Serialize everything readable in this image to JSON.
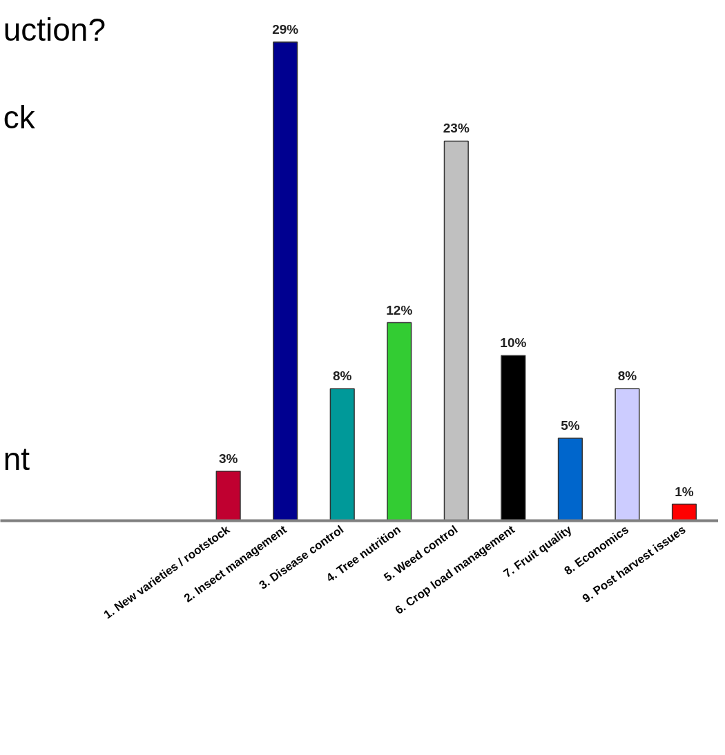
{
  "chart_data": {
    "type": "bar",
    "categories": [
      "1. New varieties / rootstock",
      "2. Insect management",
      "3. Disease control",
      "4. Tree nutrition",
      "5. Weed control",
      "6. Crop load management",
      "7. Fruit quality",
      "8. Economics",
      "9. Post harvest issues"
    ],
    "values": [
      3,
      29,
      8,
      12,
      23,
      10,
      5,
      8,
      1
    ],
    "colors": [
      "#c00030",
      "#000090",
      "#009999",
      "#33cc33",
      "#c0c0c0",
      "#000000",
      "#0066cc",
      "#ccccff",
      "#ff0000"
    ],
    "value_labels": [
      "3%",
      "29%",
      "8%",
      "12%",
      "23%",
      "10%",
      "5%",
      "8%",
      "1%"
    ],
    "grid": false,
    "annotations": [
      "uction?",
      "ck",
      "nt"
    ]
  }
}
